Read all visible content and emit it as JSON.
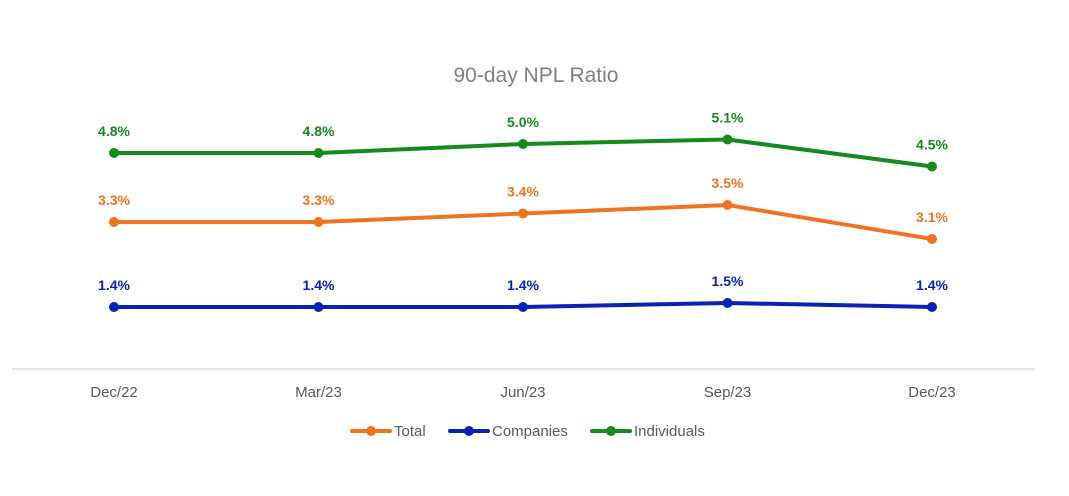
{
  "chart_data": {
    "type": "line",
    "title": "90-day NPL Ratio",
    "xlabel": "",
    "ylabel": "",
    "ylim": [
      0,
      6
    ],
    "grid": false,
    "legend_position": "bottom",
    "value_suffix": "%",
    "categories": [
      "Dec/22",
      "Mar/23",
      "Jun/23",
      "Sep/23",
      "Dec/23"
    ],
    "series": [
      {
        "name": "Total",
        "color": "#f07321",
        "values": [
          3.3,
          3.3,
          3.4,
          3.5,
          3.1
        ],
        "labels": [
          "3.3%",
          "3.3%",
          "3.4%",
          "3.5%",
          "3.1%"
        ]
      },
      {
        "name": "Companies",
        "color": "#0a22b3",
        "values": [
          1.4,
          1.4,
          1.4,
          1.5,
          1.4
        ],
        "labels": [
          "1.4%",
          "1.4%",
          "1.4%",
          "1.5%",
          "1.4%"
        ]
      },
      {
        "name": "Individuals",
        "color": "#148a1f",
        "values": [
          4.8,
          4.8,
          5.0,
          5.1,
          4.5
        ],
        "labels": [
          "4.8%",
          "4.8%",
          "5.0%",
          "5.1%",
          "4.5%"
        ]
      }
    ]
  }
}
